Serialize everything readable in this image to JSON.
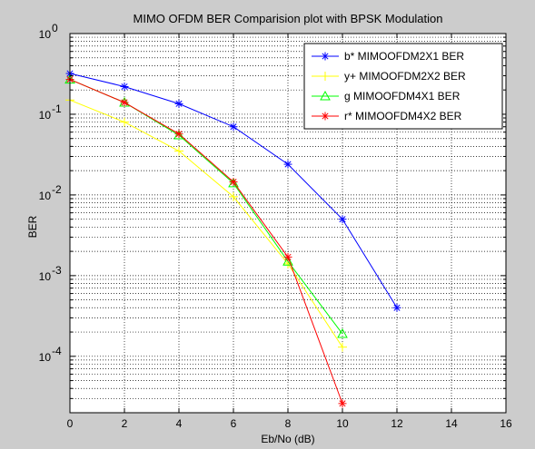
{
  "chart_data": {
    "type": "line",
    "title": "MIMO OFDM BER Comparision plot with BPSK Modulation",
    "xlabel": "Eb/No (dB)",
    "ylabel": "BER",
    "xlim": [
      0,
      16
    ],
    "ylim": [
      2e-05,
      1
    ],
    "yscale": "log",
    "xticks": [
      0,
      2,
      4,
      6,
      8,
      10,
      12,
      14,
      16
    ],
    "yticks": [
      {
        "value": 1,
        "base": "10",
        "exp": "0"
      },
      {
        "value": 0.1,
        "base": "10",
        "exp": "-1"
      },
      {
        "value": 0.01,
        "base": "10",
        "exp": "-2"
      },
      {
        "value": 0.001,
        "base": "10",
        "exp": "-3"
      },
      {
        "value": 0.0001,
        "base": "10",
        "exp": "-4"
      }
    ],
    "grid": true,
    "legend_position": "top-right",
    "series": [
      {
        "name": "b* MIMOOFDM2X1 BER",
        "color": "#0000ff",
        "marker": "star",
        "x": [
          0,
          2,
          4,
          6,
          8,
          10,
          12
        ],
        "y": [
          0.32,
          0.22,
          0.135,
          0.07,
          0.024,
          0.005,
          0.0004
        ]
      },
      {
        "name": "y+ MIMOOFDM2X2 BER",
        "color": "#ffff00",
        "marker": "plus",
        "x": [
          0,
          2,
          4,
          6,
          8,
          10
        ],
        "y": [
          0.15,
          0.08,
          0.035,
          0.0095,
          0.0014,
          0.00013
        ]
      },
      {
        "name": "g MIMOOFDM4X1 BER",
        "color": "#00ff00",
        "marker": "triangle",
        "x": [
          0,
          2,
          4,
          6,
          8,
          10
        ],
        "y": [
          0.27,
          0.14,
          0.055,
          0.014,
          0.0015,
          0.00019
        ]
      },
      {
        "name": "r* MIMOOFDM4X2 BER",
        "color": "#ff0000",
        "marker": "star",
        "x": [
          0,
          2,
          4,
          6,
          8,
          10
        ],
        "y": [
          0.27,
          0.14,
          0.057,
          0.0145,
          0.0017,
          2.6e-05
        ]
      }
    ]
  }
}
